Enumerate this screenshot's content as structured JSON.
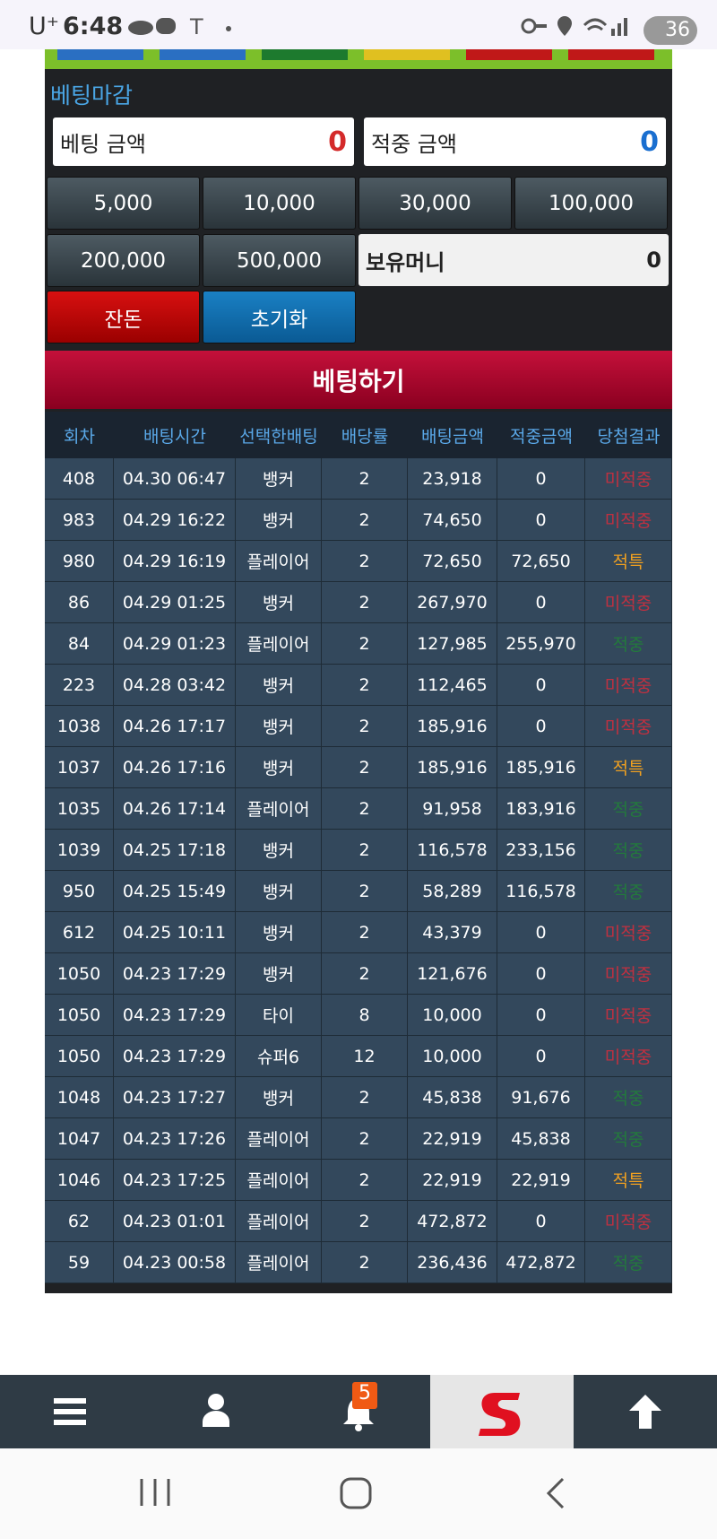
{
  "status_bar": {
    "carrier": "U⁺",
    "time": "6:48",
    "battery": "36"
  },
  "panel": {
    "title": "베팅마감",
    "bet_amount": {
      "label": "베팅 금액",
      "value": "0"
    },
    "win_amount": {
      "label": "적중 금액",
      "value": "0"
    },
    "chips": [
      "5,000",
      "10,000",
      "30,000",
      "100,000",
      "200,000",
      "500,000"
    ],
    "balance": {
      "label": "보유머니",
      "value": "0"
    },
    "buttons": [
      "잔돈",
      "초기화"
    ],
    "submit": "베팅하기"
  },
  "table": {
    "headers": [
      "회차",
      "배팅시간",
      "선택한배팅",
      "배당률",
      "배팅금액",
      "적중금액",
      "당첨결과"
    ],
    "rows": [
      [
        "408",
        "04.30 06:47",
        "뱅커",
        "2",
        "23,918",
        "0",
        "미적중"
      ],
      [
        "983",
        "04.29 16:22",
        "뱅커",
        "2",
        "74,650",
        "0",
        "미적중"
      ],
      [
        "980",
        "04.29 16:19",
        "플레이어",
        "2",
        "72,650",
        "72,650",
        "적특"
      ],
      [
        "86",
        "04.29 01:25",
        "뱅커",
        "2",
        "267,970",
        "0",
        "미적중"
      ],
      [
        "84",
        "04.29 01:23",
        "플레이어",
        "2",
        "127,985",
        "255,970",
        "적중"
      ],
      [
        "223",
        "04.28 03:42",
        "뱅커",
        "2",
        "112,465",
        "0",
        "미적중"
      ],
      [
        "1038",
        "04.26 17:17",
        "뱅커",
        "2",
        "185,916",
        "0",
        "미적중"
      ],
      [
        "1037",
        "04.26 17:16",
        "뱅커",
        "2",
        "185,916",
        "185,916",
        "적특"
      ],
      [
        "1035",
        "04.26 17:14",
        "플레이어",
        "2",
        "91,958",
        "183,916",
        "적중"
      ],
      [
        "1039",
        "04.25 17:18",
        "뱅커",
        "2",
        "116,578",
        "233,156",
        "적중"
      ],
      [
        "950",
        "04.25 15:49",
        "뱅커",
        "2",
        "58,289",
        "116,578",
        "적중"
      ],
      [
        "612",
        "04.25 10:11",
        "뱅커",
        "2",
        "43,379",
        "0",
        "미적중"
      ],
      [
        "1050",
        "04.23 17:29",
        "뱅커",
        "2",
        "121,676",
        "0",
        "미적중"
      ],
      [
        "1050",
        "04.23 17:29",
        "타이",
        "8",
        "10,000",
        "0",
        "미적중"
      ],
      [
        "1050",
        "04.23 17:29",
        "슈퍼6",
        "12",
        "10,000",
        "0",
        "미적중"
      ],
      [
        "1048",
        "04.23 17:27",
        "뱅커",
        "2",
        "45,838",
        "91,676",
        "적중"
      ],
      [
        "1047",
        "04.23 17:26",
        "플레이어",
        "2",
        "22,919",
        "45,838",
        "적중"
      ],
      [
        "1046",
        "04.23 17:25",
        "플레이어",
        "2",
        "22,919",
        "22,919",
        "적특"
      ],
      [
        "62",
        "04.23 01:01",
        "플레이어",
        "2",
        "472,872",
        "0",
        "미적중"
      ],
      [
        "59",
        "04.23 00:58",
        "플레이어",
        "2",
        "236,436",
        "472,872",
        "적중"
      ]
    ],
    "result_colors": [
      "#c03040",
      "#c03040",
      "#f0a020",
      "#c03040",
      "#237a3c",
      "#c03040",
      "#c03040",
      "#f0a020",
      "#237a3c",
      "#237a3c",
      "#237a3c",
      "#c03040",
      "#c03040",
      "#c03040",
      "#c03040",
      "#237a3c",
      "#237a3c",
      "#f0a020",
      "#c03040",
      "#237a3c"
    ]
  },
  "nav": {
    "badge": "5"
  }
}
